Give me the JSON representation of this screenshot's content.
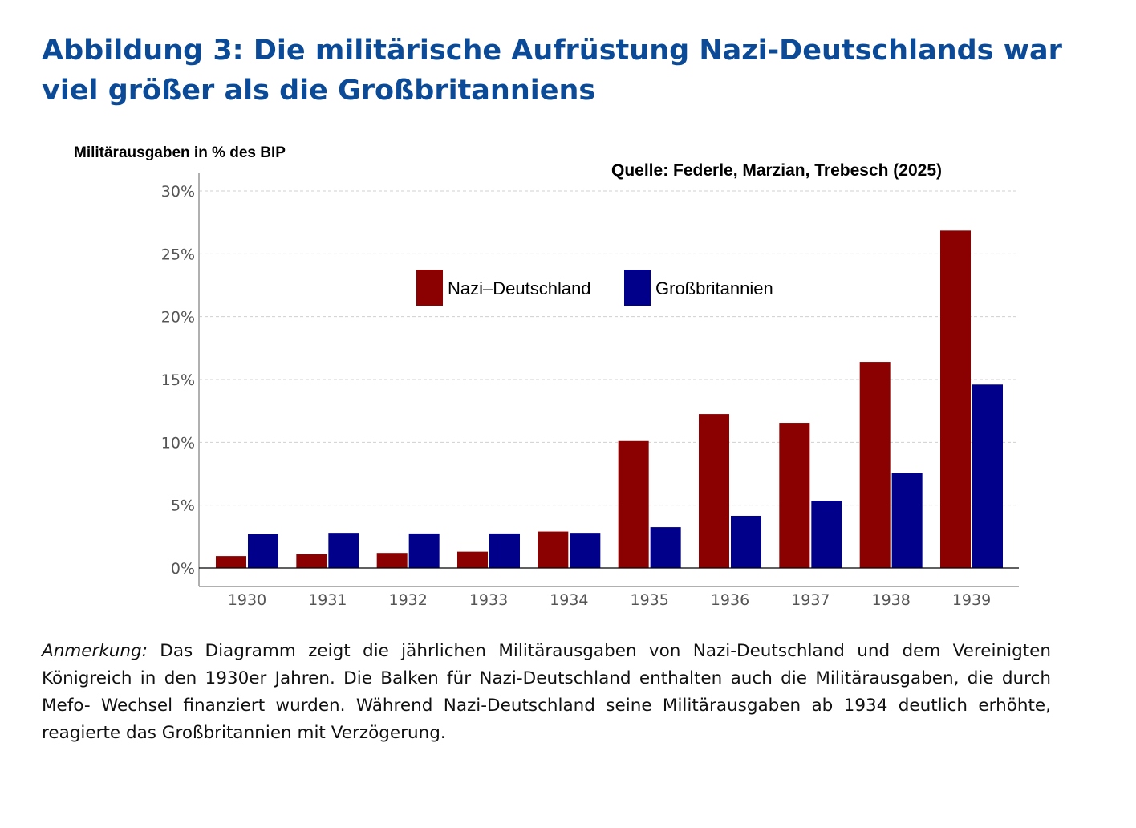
{
  "title": "Abbildung 3: Die militärische Aufrüstung Nazi-Deutschlands war viel größer als die Großbritanniens",
  "note": {
    "label": "Anmerkung:",
    "text": " Das Diagramm zeigt die jährlichen Militärausgaben von Nazi-Deutschland und dem Vereinigten Königreich in den 1930er Jahren. Die Balken für Nazi-Deutschland enthalten auch die Militärausgaben, die durch Mefo- Wechsel finanziert wurden. Während Nazi-Deutschland seine Militärausgaben ab 1934 deutlich erhöhte, reagierte das Großbritannien mit Verzögerung."
  },
  "chart_data": {
    "type": "bar",
    "ylabel": "Militärausgaben in % des BIP",
    "source": "Quelle: Federle, Marzian, Trebesch (2025)",
    "categories": [
      "1930",
      "1931",
      "1932",
      "1933",
      "1934",
      "1935",
      "1936",
      "1937",
      "1938",
      "1939"
    ],
    "series": [
      {
        "name": "Nazi–Deutschland",
        "color": "#8b0000",
        "values": [
          0.95,
          1.1,
          1.2,
          1.3,
          2.9,
          10.1,
          12.25,
          11.55,
          16.4,
          26.85
        ]
      },
      {
        "name": "Großbritannien",
        "color": "#00008b",
        "values": [
          2.7,
          2.8,
          2.75,
          2.75,
          2.8,
          3.25,
          4.15,
          5.35,
          7.55,
          14.6
        ]
      }
    ],
    "ylim": [
      0,
      30
    ],
    "yticks": [
      0,
      5,
      10,
      15,
      20,
      25,
      30
    ],
    "ytick_labels": [
      "0%",
      "5%",
      "10%",
      "15%",
      "20%",
      "25%",
      "30%"
    ],
    "grid": true,
    "legend": "top-center"
  }
}
